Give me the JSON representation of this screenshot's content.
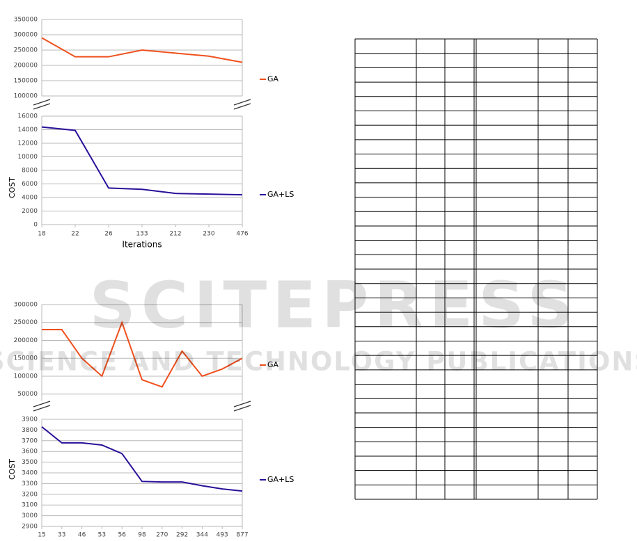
{
  "watermark": {
    "title": "SCITEPRESS",
    "subtitle": "SCIENCE AND TECHNOLOGY PUBLICATIONS"
  },
  "chart_data": [
    {
      "type": "line",
      "y_label": "COST",
      "x_label": "Iterations",
      "categories": [
        "18",
        "22",
        "26",
        "133",
        "212",
        "230",
        "476"
      ],
      "ylim": [
        0,
        16000
      ],
      "yticks": [
        0,
        2000,
        4000,
        6000,
        8000,
        10000,
        12000,
        14000,
        16000
      ],
      "y2lim": [
        100000,
        350000
      ],
      "y2ticks": [
        100000,
        150000,
        200000,
        250000,
        300000,
        350000
      ],
      "grid": true,
      "series": [
        {
          "name": "GA",
          "color": "#f0501e",
          "axis": "y2",
          "values": [
            290000,
            228000,
            228000,
            250000,
            240000,
            230000,
            210000
          ]
        },
        {
          "name": "GA+LS",
          "color": "#2a0f9a",
          "values": [
            14400,
            13900,
            5400,
            5200,
            4600,
            4500,
            4400
          ]
        }
      ]
    },
    {
      "type": "line",
      "y_label": "COST",
      "categories": [
        "15",
        "33",
        "46",
        "53",
        "56",
        "98",
        "270",
        "292",
        "344",
        "493",
        "877"
      ],
      "ylim": [
        2900,
        3900
      ],
      "yticks": [
        2900,
        3000,
        3100,
        3200,
        3300,
        3400,
        3500,
        3600,
        3700,
        3800,
        3900
      ],
      "y2lim": [
        30000,
        300000
      ],
      "y2ticks": [
        50000,
        100000,
        150000,
        200000,
        250000,
        300000
      ],
      "grid": true,
      "series": [
        {
          "name": "GA",
          "color": "#f0501e",
          "axis": "y2",
          "values": [
            230000,
            230000,
            150000,
            100000,
            250000,
            90000,
            70000,
            170000,
            100000,
            120000,
            150000
          ]
        },
        {
          "name": "GA+LS",
          "color": "#2a0f9a",
          "values": [
            3830,
            3680,
            3680,
            3660,
            3580,
            3320,
            3315,
            3315,
            3280,
            3250,
            3230
          ]
        }
      ]
    }
  ]
}
